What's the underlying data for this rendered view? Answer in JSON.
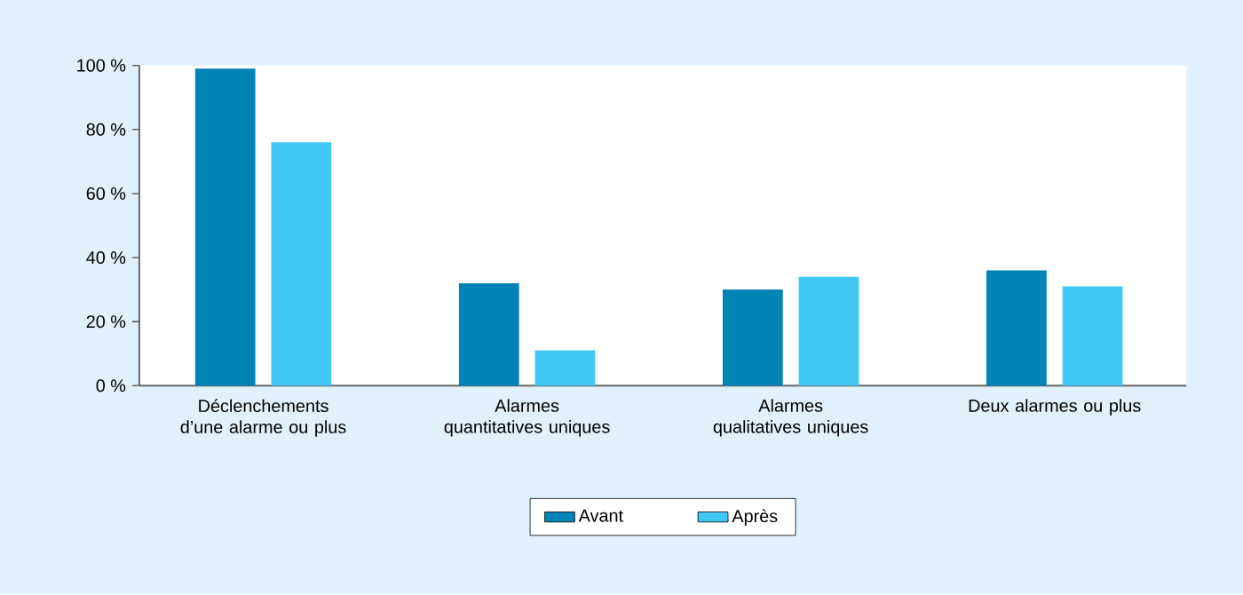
{
  "chart_data": {
    "type": "bar",
    "categories": [
      "Déclenchements d’une alarme ou plus",
      "Alarmes quantitatives uniques",
      "Alarmes qualitatives uniques",
      "Deux alarmes ou plus"
    ],
    "series": [
      {
        "name": "Avant",
        "color": "#0083b5",
        "values": [
          99,
          32,
          30,
          36
        ]
      },
      {
        "name": "Après",
        "color": "#40c8f4",
        "values": [
          76,
          11,
          34,
          31
        ]
      }
    ],
    "ylim": [
      0,
      100
    ],
    "yticks": [
      {
        "value": 0,
        "label": "0 %"
      },
      {
        "value": 20,
        "label": "20 %"
      },
      {
        "value": 40,
        "label": "40 %"
      },
      {
        "value": 60,
        "label": "60 %"
      },
      {
        "value": 80,
        "label": "80 %"
      },
      {
        "value": 100,
        "label": "100 %"
      }
    ],
    "legend": "bottom"
  }
}
